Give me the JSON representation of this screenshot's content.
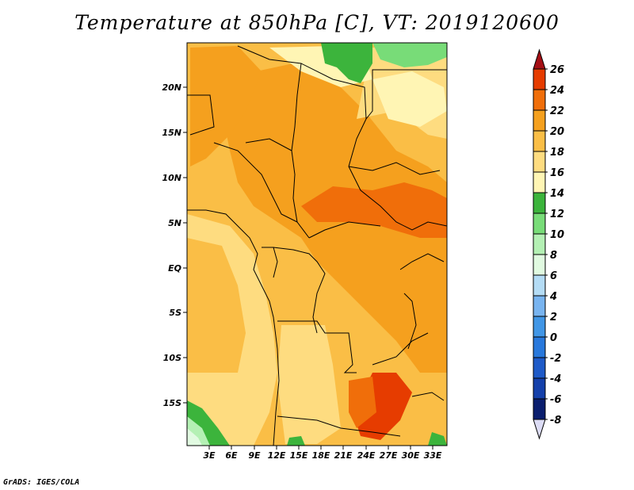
{
  "map": {
    "title": "Temperature at 850hPa [C], VT: 2019120600",
    "footer": "GrADS: IGES/COLA",
    "lat_labels": [
      "20N",
      "15N",
      "10N",
      "5N",
      "EQ",
      "5S",
      "10S",
      "15S"
    ],
    "lon_labels": [
      "3E",
      "6E",
      "9E",
      "12E",
      "15E",
      "18E",
      "21E",
      "24E",
      "27E",
      "30E",
      "33E"
    ]
  },
  "colorbar": {
    "labels": [
      "26",
      "24",
      "22",
      "20",
      "18",
      "16",
      "14",
      "12",
      "10",
      "8",
      "6",
      "4",
      "2",
      "0",
      "-2",
      "-4",
      "-6",
      "-8"
    ],
    "colors": [
      "#a50f15",
      "#e63c00",
      "#f06e0a",
      "#f5a01e",
      "#fabe46",
      "#fedc80",
      "#fff5b4",
      "#3cb43c",
      "#78dc78",
      "#b4f0b4",
      "#e1fae1",
      "#b4dcf5",
      "#78b4f0",
      "#4196e6",
      "#2878dc",
      "#1e5ac8",
      "#1440aa",
      "#0a1e6e",
      "#dcdcf5"
    ]
  }
}
